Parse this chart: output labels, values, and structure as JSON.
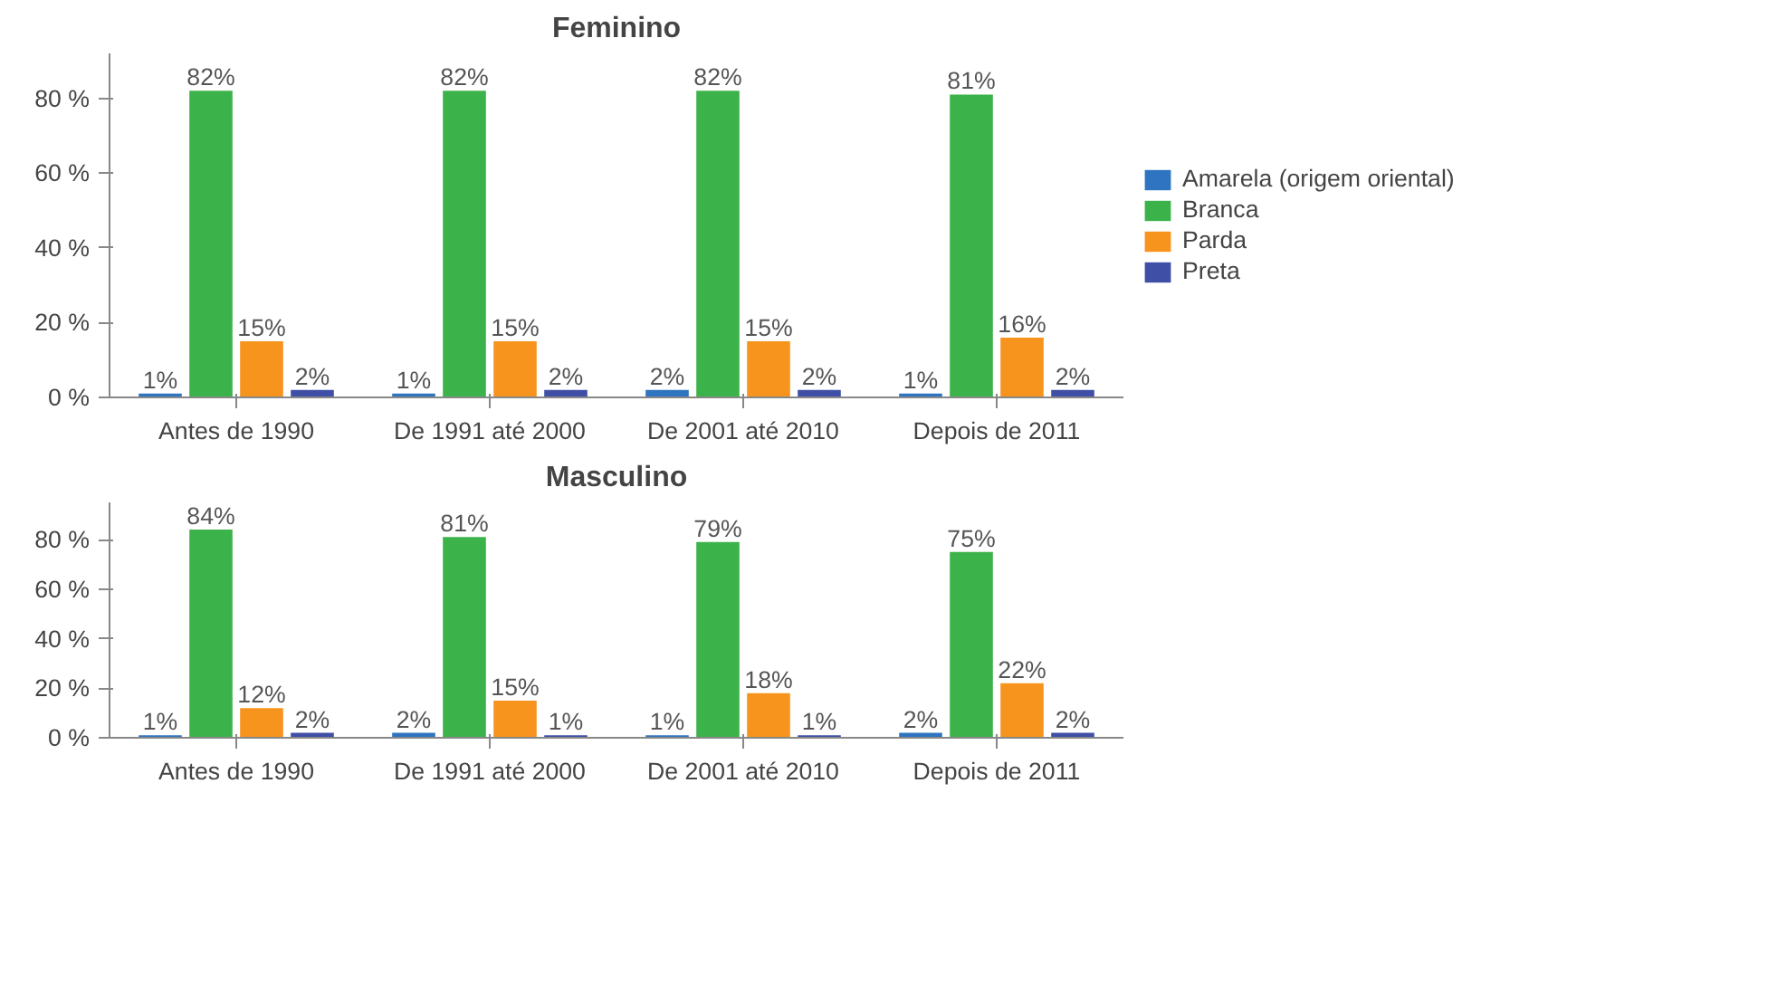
{
  "chart_data": [
    {
      "type": "bar",
      "title": "Feminino",
      "categories": [
        "Antes de 1990",
        "De 1991 até 2000",
        "De 2001 até 2010",
        "Depois de 2011"
      ],
      "ylim": [
        0,
        92
      ],
      "yticks": [
        {
          "value": 0,
          "label": "0 %"
        },
        {
          "value": 20,
          "label": "20 %"
        },
        {
          "value": 40,
          "label": "40 %"
        },
        {
          "value": 60,
          "label": "60 %"
        },
        {
          "value": 80,
          "label": "80 %"
        }
      ],
      "legend": "right",
      "series": [
        {
          "name": "Amarela (origem oriental)",
          "color": "#2f74c0",
          "values": [
            1,
            1,
            2,
            1
          ],
          "value_labels": [
            "1%",
            "1%",
            "2%",
            "1%"
          ]
        },
        {
          "name": "Branca",
          "color": "#3cb34a",
          "values": [
            82,
            82,
            82,
            81
          ],
          "value_labels": [
            "82%",
            "82%",
            "82%",
            "81%"
          ]
        },
        {
          "name": "Parda",
          "color": "#f7941d",
          "values": [
            15,
            15,
            15,
            16
          ],
          "value_labels": [
            "15%",
            "15%",
            "15%",
            "16%"
          ]
        },
        {
          "name": "Preta",
          "color": "#3f4fa6",
          "values": [
            2,
            2,
            2,
            2
          ],
          "value_labels": [
            "2%",
            "2%",
            "2%",
            "2%"
          ]
        }
      ]
    },
    {
      "type": "bar",
      "title": "Masculino",
      "categories": [
        "Antes de 1990",
        "De 1991 até 2000",
        "De 2001 até 2010",
        "Depois de 2011"
      ],
      "ylim": [
        0,
        95
      ],
      "yticks": [
        {
          "value": 0,
          "label": "0 %"
        },
        {
          "value": 20,
          "label": "20 %"
        },
        {
          "value": 40,
          "label": "40 %"
        },
        {
          "value": 60,
          "label": "60 %"
        },
        {
          "value": 80,
          "label": "80 %"
        }
      ],
      "series": [
        {
          "color": "#2f74c0",
          "values": [
            1,
            2,
            1,
            2
          ],
          "value_labels": [
            "1%",
            "2%",
            "1%",
            "2%"
          ]
        },
        {
          "color": "#3cb34a",
          "values": [
            84,
            81,
            79,
            75
          ],
          "value_labels": [
            "84%",
            "81%",
            "79%",
            "75%"
          ]
        },
        {
          "color": "#f7941d",
          "values": [
            12,
            15,
            18,
            22
          ],
          "value_labels": [
            "12%",
            "15%",
            "18%",
            "22%"
          ]
        },
        {
          "color": "#3f4fa6",
          "values": [
            2,
            1,
            1,
            2
          ],
          "value_labels": [
            "2%",
            "1%",
            "1%",
            "2%"
          ]
        }
      ]
    }
  ]
}
